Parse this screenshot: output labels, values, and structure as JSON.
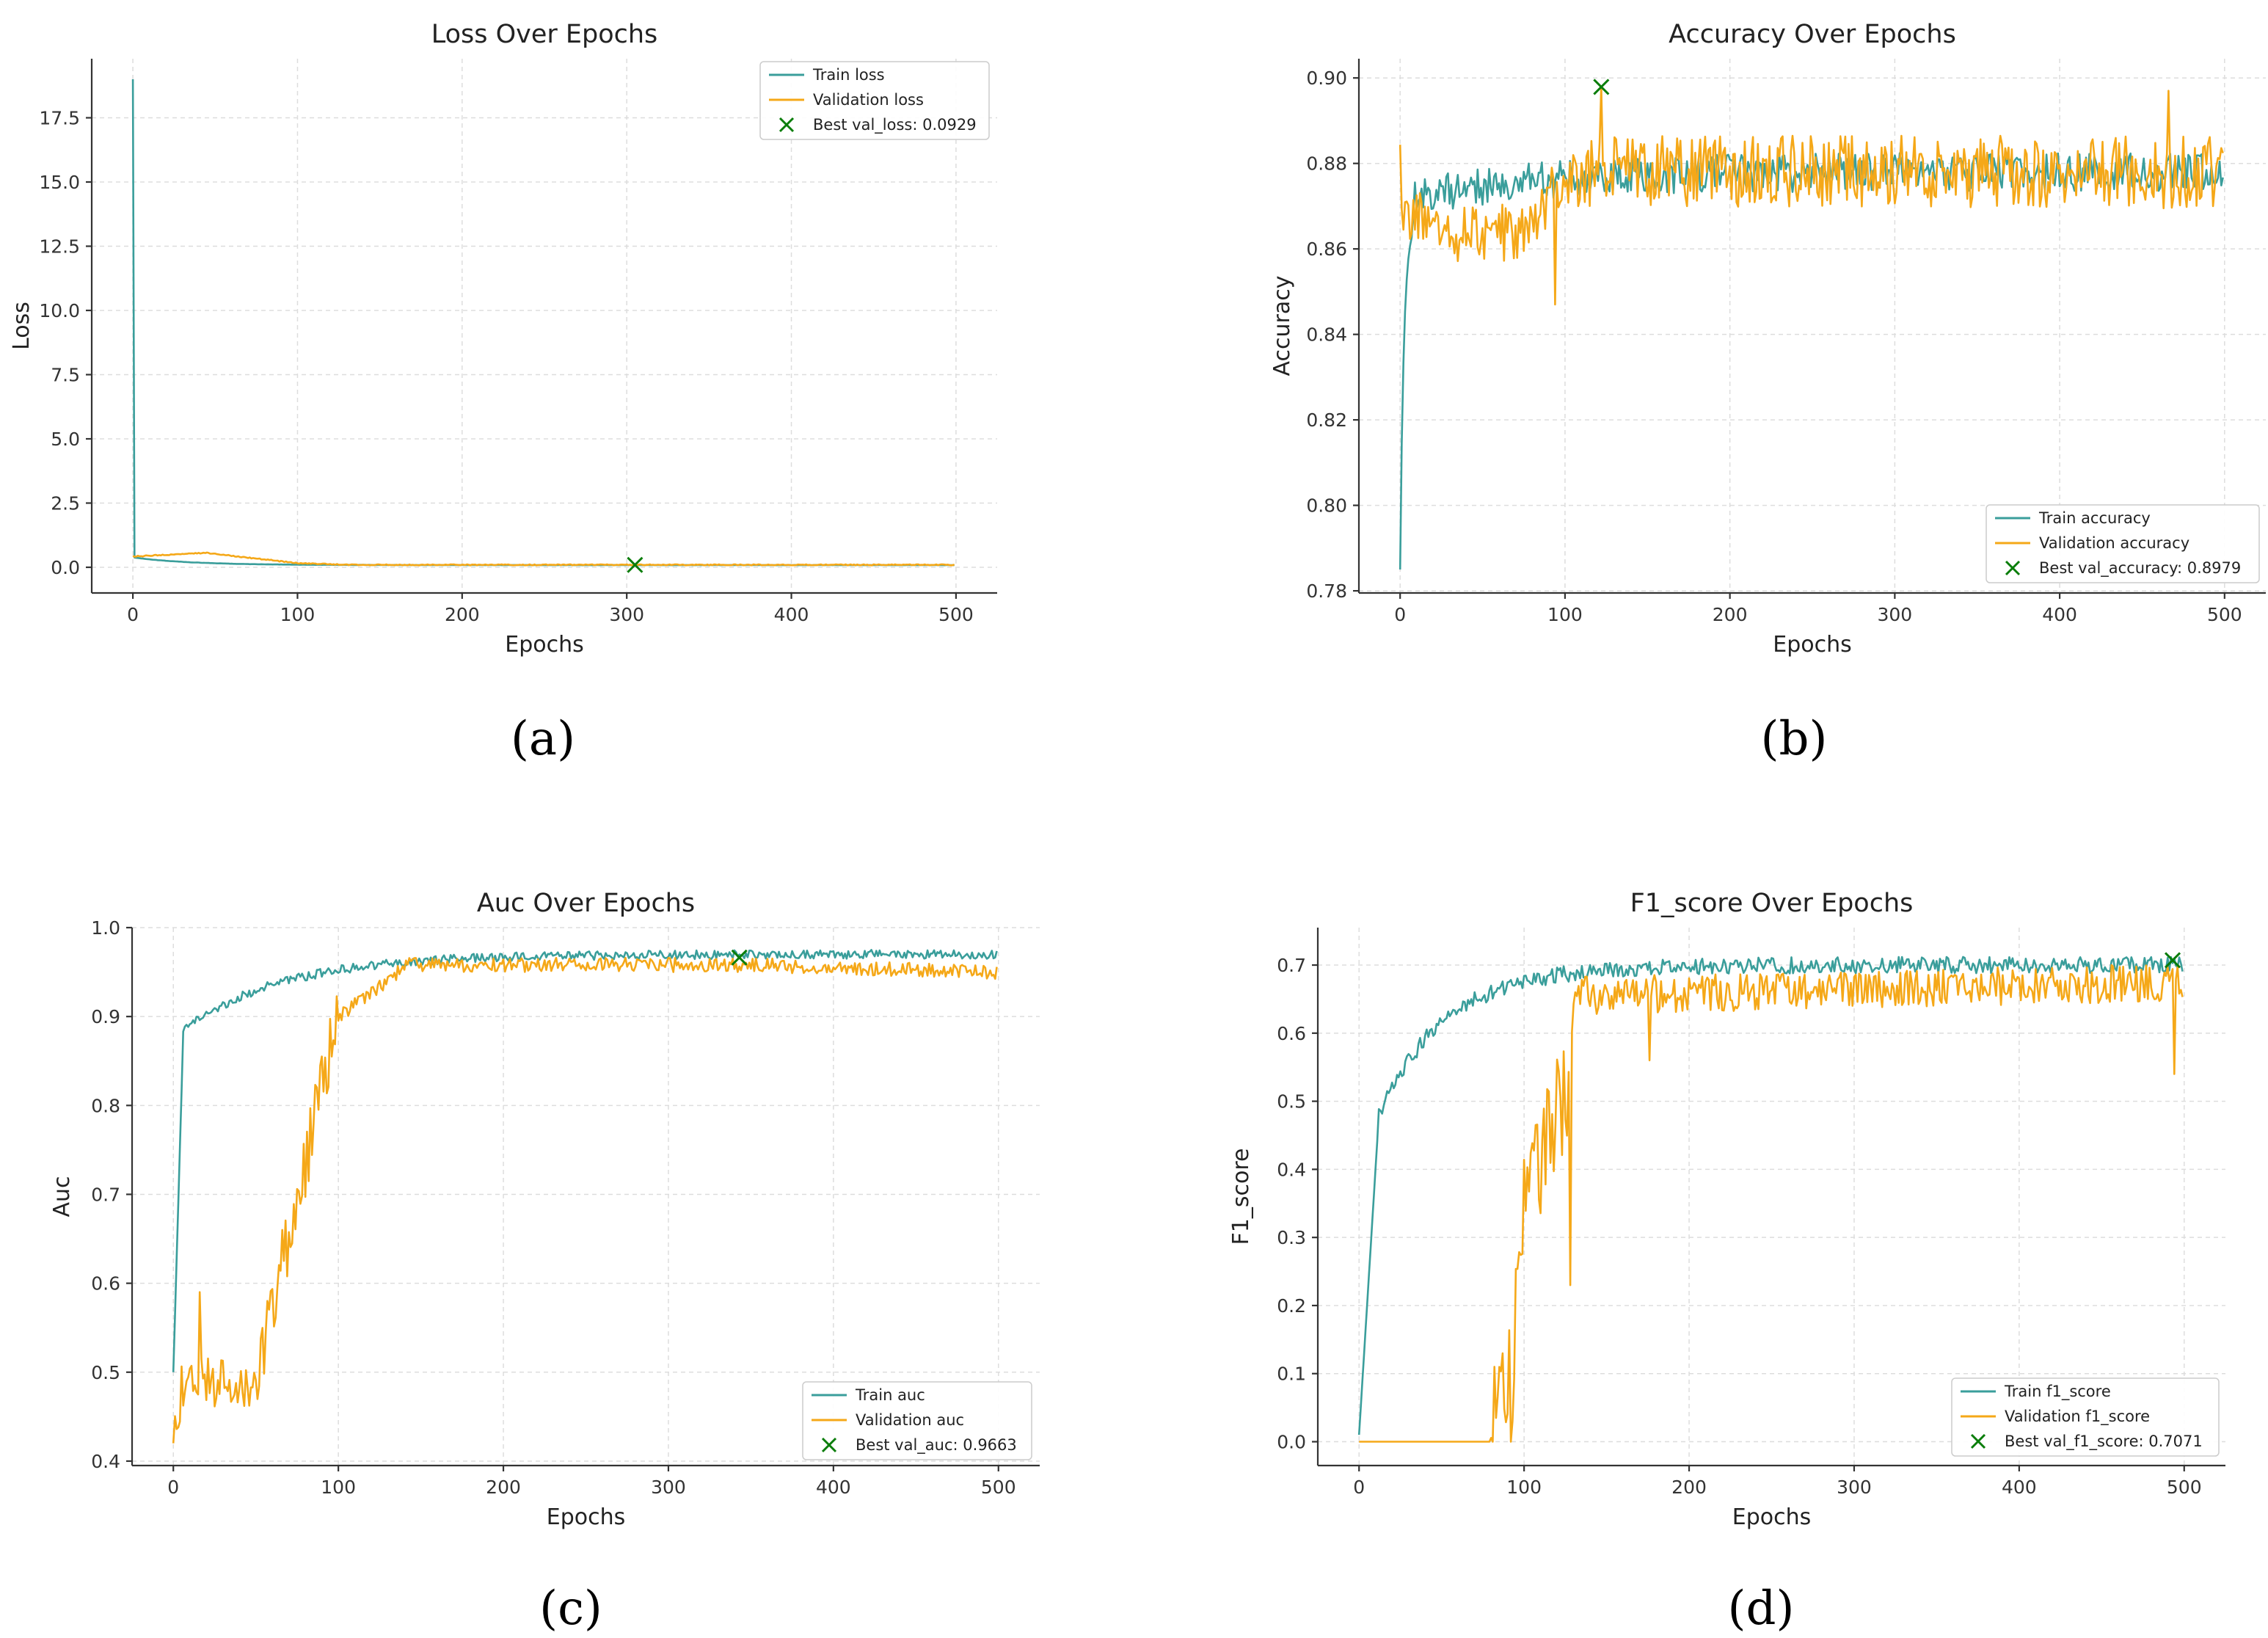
{
  "colors": {
    "train": "#3a9e9b",
    "validation": "#f5a818",
    "best": "#0a7d0a"
  },
  "chart_data": [
    {
      "id": "loss",
      "panel_label": "(a)",
      "type": "line",
      "title": "Loss Over Epochs",
      "xlabel": "Epochs",
      "ylabel": "Loss",
      "xlim": [
        -25,
        525
      ],
      "ylim": [
        -1.0,
        19.8
      ],
      "xticks": [
        0,
        100,
        200,
        300,
        400,
        500
      ],
      "yticks": [
        0.0,
        2.5,
        5.0,
        7.5,
        10.0,
        12.5,
        15.0,
        17.5
      ],
      "ytick_labels": [
        "0.0",
        "2.5",
        "5.0",
        "7.5",
        "10.0",
        "12.5",
        "15.0",
        "17.5"
      ],
      "legend_position": "top-right",
      "series": [
        {
          "name": "Train loss",
          "role": "train",
          "gen": "loss_train"
        },
        {
          "name": "Validation loss",
          "role": "validation",
          "gen": "loss_val"
        }
      ],
      "best": {
        "label": "Best val_loss: 0.0929",
        "epoch": 305,
        "value": 0.0929
      }
    },
    {
      "id": "accuracy",
      "panel_label": "(b)",
      "type": "line",
      "title": "Accuracy Over Epochs",
      "xlabel": "Epochs",
      "ylabel": "Accuracy",
      "xlim": [
        -25,
        525
      ],
      "ylim": [
        0.7795,
        0.9045
      ],
      "xticks": [
        0,
        100,
        200,
        300,
        400,
        500
      ],
      "yticks": [
        0.78,
        0.8,
        0.82,
        0.84,
        0.86,
        0.88,
        0.9
      ],
      "ytick_labels": [
        "0.78",
        "0.80",
        "0.82",
        "0.84",
        "0.86",
        "0.88",
        "0.90"
      ],
      "legend_position": "bottom-right",
      "series": [
        {
          "name": "Train accuracy",
          "role": "train",
          "gen": "acc_train"
        },
        {
          "name": "Validation accuracy",
          "role": "validation",
          "gen": "acc_val"
        }
      ],
      "best": {
        "label": "Best val_accuracy: 0.8979",
        "epoch": 122,
        "value": 0.8979
      }
    },
    {
      "id": "auc",
      "panel_label": "(c)",
      "type": "line",
      "title": "Auc Over Epochs",
      "xlabel": "Epochs",
      "ylabel": "Auc",
      "xlim": [
        -25,
        525
      ],
      "ylim": [
        0.395,
        1.0
      ],
      "xticks": [
        0,
        100,
        200,
        300,
        400,
        500
      ],
      "yticks": [
        0.4,
        0.5,
        0.6,
        0.7,
        0.8,
        0.9,
        1.0
      ],
      "ytick_labels": [
        "0.4",
        "0.5",
        "0.6",
        "0.7",
        "0.8",
        "0.9",
        "1.0"
      ],
      "legend_position": "bottom-right",
      "series": [
        {
          "name": "Train auc",
          "role": "train",
          "gen": "auc_train"
        },
        {
          "name": "Validation auc",
          "role": "validation",
          "gen": "auc_val"
        }
      ],
      "best": {
        "label": "Best val_auc: 0.9663",
        "epoch": 343,
        "value": 0.9663
      }
    },
    {
      "id": "f1",
      "panel_label": "(d)",
      "type": "line",
      "title": "F1_score Over Epochs",
      "xlabel": "Epochs",
      "ylabel": "F1_score",
      "xlim": [
        -25,
        525
      ],
      "ylim": [
        -0.035,
        0.755
      ],
      "xticks": [
        0,
        100,
        200,
        300,
        400,
        500
      ],
      "yticks": [
        0.0,
        0.1,
        0.2,
        0.3,
        0.4,
        0.5,
        0.6,
        0.7
      ],
      "ytick_labels": [
        "0.0",
        "0.1",
        "0.2",
        "0.3",
        "0.4",
        "0.5",
        "0.6",
        "0.7"
      ],
      "legend_position": "bottom-right",
      "series": [
        {
          "name": "Train f1_score",
          "role": "train",
          "gen": "f1_train"
        },
        {
          "name": "Validation f1_score",
          "role": "validation",
          "gen": "f1_val"
        }
      ],
      "best": {
        "label": "Best val_f1_score: 0.7071",
        "epoch": 493,
        "value": 0.7071
      }
    }
  ]
}
